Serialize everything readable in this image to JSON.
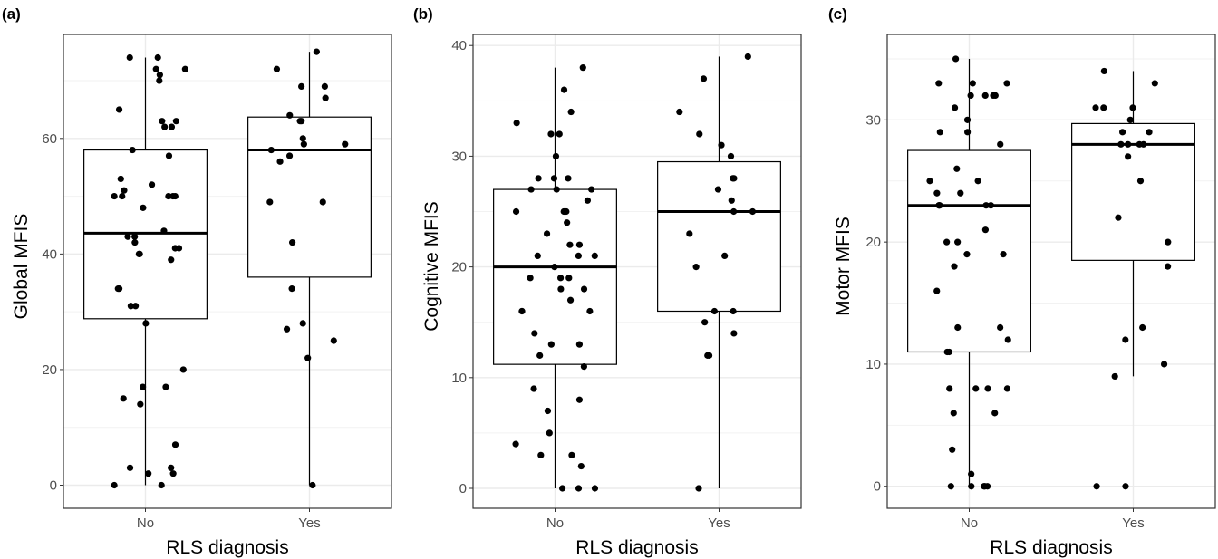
{
  "figure": {
    "background": "#ffffff",
    "grid_major": "#ebebeb",
    "grid_minor": "#f2f2f2",
    "point_color": "#000000",
    "box_color": "#000000",
    "tick_text_color": "#4d4d4d"
  },
  "chart_data": [
    {
      "type": "box",
      "panel_label": "(a)",
      "title": "",
      "xlabel": "RLS diagnosis",
      "ylabel": "Global MFIS",
      "categories": [
        "No",
        "Yes"
      ],
      "ylim": [
        -4,
        78
      ],
      "yticks": [
        0,
        20,
        40,
        60
      ],
      "ytick_labels": [
        "0",
        "20",
        "40",
        "60"
      ],
      "grid": true,
      "boxes": [
        {
          "category": "No",
          "lower_whisker": 0,
          "q1": 28.8,
          "median": 43.6,
          "q3": 58,
          "upper_whisker": 74
        },
        {
          "category": "Yes",
          "lower_whisker": 0,
          "q1": 36,
          "median": 58,
          "q3": 63.7,
          "upper_whisker": 75
        }
      ],
      "points": [
        {
          "category": "No",
          "y": [
            74,
            74,
            72,
            72,
            71,
            70,
            65,
            63,
            63,
            62,
            62,
            58,
            57,
            53,
            52,
            51,
            50,
            50,
            50,
            50,
            50,
            48,
            44,
            43,
            43,
            42,
            41,
            41,
            40,
            40,
            39,
            34,
            34,
            31,
            31,
            28,
            20,
            17,
            17,
            15,
            14,
            7,
            3,
            3,
            2,
            2,
            0,
            0
          ]
        },
        {
          "category": "Yes",
          "y": [
            75,
            72,
            69,
            69,
            67,
            64,
            63,
            63,
            60,
            59,
            59,
            58,
            57,
            56,
            49,
            49,
            42,
            34,
            28,
            27,
            25,
            22,
            0
          ]
        }
      ]
    },
    {
      "type": "box",
      "panel_label": "(b)",
      "title": "",
      "xlabel": "RLS diagnosis",
      "ylabel": "Cognitive MFIS",
      "categories": [
        "No",
        "Yes"
      ],
      "ylim": [
        -1.8,
        41
      ],
      "yticks": [
        0,
        10,
        20,
        30,
        40
      ],
      "ytick_labels": [
        "0",
        "10",
        "20",
        "30",
        "40"
      ],
      "grid": true,
      "boxes": [
        {
          "category": "No",
          "lower_whisker": 0,
          "q1": 11.2,
          "median": 20,
          "q3": 27,
          "upper_whisker": 38
        },
        {
          "category": "Yes",
          "lower_whisker": 0,
          "q1": 16,
          "median": 25,
          "q3": 29.5,
          "upper_whisker": 39
        }
      ],
      "points": [
        {
          "category": "No",
          "y": [
            38,
            36,
            34,
            33,
            32,
            32,
            30,
            28,
            28,
            28,
            27,
            27,
            27,
            26,
            25,
            25,
            25,
            24,
            23,
            22,
            22,
            21,
            21,
            21,
            20,
            19,
            19,
            19,
            18,
            18,
            17,
            16,
            16,
            16,
            14,
            13,
            13,
            12,
            11,
            9,
            8,
            7,
            5,
            4,
            3,
            3,
            2,
            0,
            0,
            0
          ]
        },
        {
          "category": "Yes",
          "y": [
            39,
            37,
            34,
            32,
            31,
            30,
            28,
            28,
            27,
            26,
            25,
            25,
            23,
            21,
            20,
            16,
            16,
            15,
            14,
            12,
            12,
            0
          ]
        }
      ]
    },
    {
      "type": "box",
      "panel_label": "(c)",
      "title": "",
      "xlabel": "RLS diagnosis",
      "ylabel": "Motor MFIS",
      "categories": [
        "No",
        "Yes"
      ],
      "ylim": [
        -1.8,
        37
      ],
      "yticks": [
        0,
        10,
        20,
        30
      ],
      "ytick_labels": [
        "0",
        "10",
        "20",
        "30"
      ],
      "grid": true,
      "boxes": [
        {
          "category": "No",
          "lower_whisker": 0,
          "q1": 11,
          "median": 23,
          "q3": 27.5,
          "upper_whisker": 35
        },
        {
          "category": "Yes",
          "lower_whisker": 9,
          "q1": 18.5,
          "median": 28,
          "q3": 29.7,
          "upper_whisker": 34
        }
      ],
      "points": [
        {
          "category": "No",
          "y": [
            35,
            33,
            33,
            33,
            32,
            32,
            32,
            32,
            31,
            30,
            29,
            29,
            28,
            26,
            25,
            25,
            24,
            24,
            23,
            23,
            23,
            23,
            23,
            21,
            20,
            20,
            19,
            19,
            18,
            16,
            13,
            13,
            12,
            11,
            11,
            8,
            8,
            8,
            8,
            6,
            6,
            3,
            1,
            0,
            0,
            0,
            0,
            0
          ]
        },
        {
          "category": "Yes",
          "y": [
            34,
            33,
            31,
            31,
            31,
            30,
            29,
            29,
            28,
            28,
            28,
            28,
            27,
            25,
            22,
            20,
            18,
            13,
            12,
            10,
            9,
            0,
            0
          ]
        }
      ]
    }
  ]
}
